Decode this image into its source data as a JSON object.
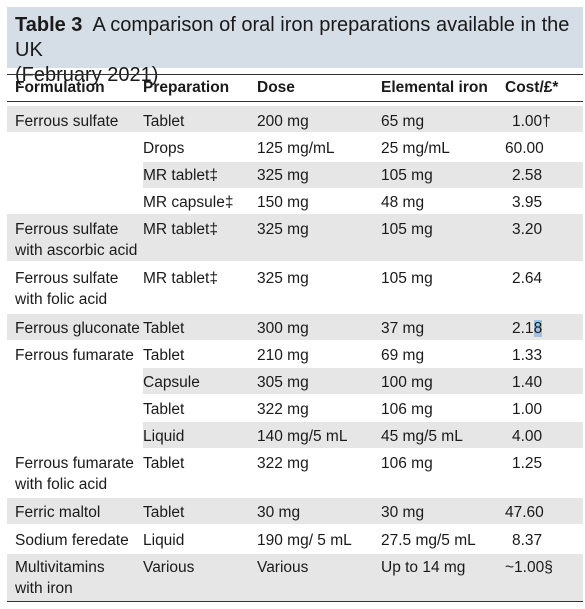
{
  "title": {
    "label": "Table 3",
    "text_line1": "A comparison of oral iron preparations available in the UK",
    "text_line2": "(February 2021)"
  },
  "headers": [
    "Formulation",
    "Preparation",
    "Dose",
    "Elemental iron",
    "Cost/£*"
  ],
  "rows": [
    {
      "formulation": [
        "Ferrous sulfate"
      ],
      "preparation": "Tablet",
      "dose": "200 mg",
      "iron": "65 mg",
      "cost": "1.00†"
    },
    {
      "formulation": [],
      "preparation": "Drops",
      "dose": "125 mg/mL",
      "iron": "25 mg/mL",
      "cost": "60.00"
    },
    {
      "formulation": [],
      "preparation": "MR tablet‡",
      "dose": "325 mg",
      "iron": "105 mg",
      "cost": "2.58"
    },
    {
      "formulation": [],
      "preparation": "MR capsule‡",
      "dose": "150 mg",
      "iron": "48 mg",
      "cost": "3.95"
    },
    {
      "formulation": [
        "Ferrous sulfate",
        "with ascorbic acid"
      ],
      "preparation": "MR tablet‡",
      "dose": "325 mg",
      "iron": "105 mg",
      "cost": "3.20"
    },
    {
      "formulation": [
        "Ferrous sulfate",
        "with folic acid"
      ],
      "preparation": "MR tablet‡",
      "dose": "325 mg",
      "iron": "105 mg",
      "cost": "2.64"
    },
    {
      "formulation": [
        "Ferrous gluconate"
      ],
      "preparation": "Tablet",
      "dose": "300 mg",
      "iron": "37 mg",
      "cost_a": "2.1",
      "cost_b": "8"
    },
    {
      "formulation": [
        "Ferrous fumarate"
      ],
      "preparation": "Tablet",
      "dose": "210 mg",
      "iron": "69 mg",
      "cost": "1.33"
    },
    {
      "formulation": [],
      "preparation": "Capsule",
      "dose": "305 mg",
      "iron": "100 mg",
      "cost": "1.40"
    },
    {
      "formulation": [],
      "preparation": "Tablet",
      "dose": "322 mg",
      "iron": "106 mg",
      "cost": "1.00"
    },
    {
      "formulation": [],
      "preparation": "Liquid",
      "dose": "140 mg/5 mL",
      "iron": "45 mg/5 mL",
      "cost": "4.00"
    },
    {
      "formulation": [
        "Ferrous fumarate",
        "with folic acid"
      ],
      "preparation": "Tablet",
      "dose": "322 mg",
      "iron": "106 mg",
      "cost": "1.25"
    },
    {
      "formulation": [
        "Ferric maltol"
      ],
      "preparation": "Tablet",
      "dose": "30 mg",
      "iron": "30 mg",
      "cost": "47.60"
    },
    {
      "formulation": [
        "Sodium feredate"
      ],
      "preparation": "Liquid",
      "dose": "190 mg/ 5 mL",
      "iron": "27.5 mg/5 mL",
      "cost": "8.37"
    },
    {
      "formulation": [
        "Multivitamins",
        "with iron"
      ],
      "preparation": "Various",
      "dose": "Various",
      "iron": "Up to 14 mg",
      "cost": "~1.00§"
    }
  ]
}
